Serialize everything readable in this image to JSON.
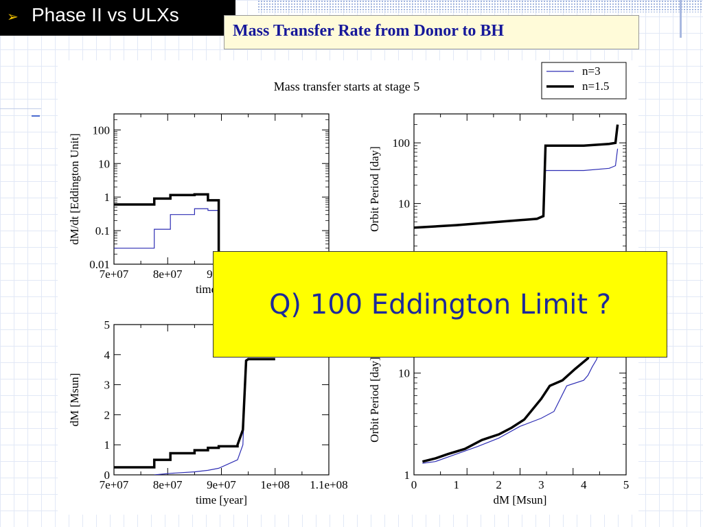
{
  "slide": {
    "title": "Phase II vs ULXs",
    "title_bullet": "➢",
    "subtitle": "Mass Transfer Rate from Donor to BH",
    "callout": "Q) 100 Eddington Limit  ?",
    "callout_color": "#ffff00",
    "callout_text_color": "#1d2a9a",
    "subtitle_color": "#16189a"
  },
  "chart_data": {
    "title": "Mass transfer starts at stage 5",
    "legend": {
      "placement": "top-right",
      "entries": [
        {
          "name": "n=3",
          "color": "#2d2db4",
          "width": "thin"
        },
        {
          "name": "n=1.5",
          "color": "#000000",
          "width": "thick"
        }
      ]
    },
    "panels": [
      {
        "id": "tl",
        "type": "line",
        "xlabel": "time [year]",
        "ylabel": "dM/dt [Eddington Unit]",
        "xscale": "linear",
        "yscale": "log",
        "xlim": [
          70000000,
          110000000
        ],
        "ylim": [
          0.01,
          300
        ],
        "xticks": [
          {
            "v": 70000000,
            "label": "7e+07"
          },
          {
            "v": 80000000,
            "label": "8e+07"
          },
          {
            "v": 90000000,
            "label": "9e+07"
          }
        ],
        "yticks": [
          {
            "v": 0.01,
            "label": "0.01"
          },
          {
            "v": 0.1,
            "label": "0.1"
          },
          {
            "v": 1,
            "label": "1"
          },
          {
            "v": 10,
            "label": "10"
          },
          {
            "v": 100,
            "label": "100"
          }
        ],
        "series": [
          {
            "name": "n=3",
            "x": [
              70000000,
              70000000,
              77500000,
              77500000,
              80500000,
              80500000,
              85000000,
              85000000,
              87500000,
              87500000,
              89500000,
              89500000
            ],
            "y": [
              0.03,
              0.03,
              0.03,
              0.11,
              0.11,
              0.3,
              0.3,
              0.45,
              0.45,
              0.4,
              0.4,
              0.01
            ]
          },
          {
            "name": "n=1.5",
            "x": [
              70000000,
              70000000,
              77500000,
              77500000,
              80500000,
              80500000,
              85000000,
              85000000,
              87500000,
              87500000,
              89500000,
              89500000
            ],
            "y": [
              0.6,
              0.6,
              0.6,
              0.9,
              0.9,
              1.15,
              1.15,
              1.2,
              1.2,
              0.8,
              0.8,
              0.01
            ]
          }
        ]
      },
      {
        "id": "tr",
        "type": "line",
        "xlabel": "",
        "ylabel": "Orbit Period [day]",
        "xscale": "linear",
        "yscale": "log",
        "xlim": [
          0,
          5
        ],
        "ylim": [
          1,
          300
        ],
        "xticks": [],
        "yticks": [
          {
            "v": 10,
            "label": "10"
          },
          {
            "v": 100,
            "label": "100"
          }
        ],
        "series": [
          {
            "name": "n=3",
            "x": [
              0,
              1,
              2,
              2.9,
              3.05,
              3.1,
              3.2,
              4.0,
              4.6,
              4.75,
              4.8
            ],
            "y": [
              4.0,
              4.4,
              5.0,
              5.6,
              6.0,
              35,
              35,
              35,
              38,
              42,
              80
            ]
          },
          {
            "name": "n=1.5",
            "x": [
              0,
              1,
              2,
              2.9,
              3.05,
              3.1,
              3.2,
              4.0,
              4.6,
              4.75,
              4.8
            ],
            "y": [
              4.0,
              4.4,
              5.0,
              5.6,
              6.2,
              90,
              90,
              90,
              96,
              100,
              200
            ]
          }
        ]
      },
      {
        "id": "bl",
        "type": "line",
        "xlabel": "time [year]",
        "ylabel": "dM [Msun]",
        "xscale": "linear",
        "yscale": "linear",
        "xlim": [
          70000000,
          110000000
        ],
        "ylim": [
          0,
          5
        ],
        "xticks": [
          {
            "v": 70000000,
            "label": "7e+07"
          },
          {
            "v": 80000000,
            "label": "8e+07"
          },
          {
            "v": 90000000,
            "label": "9e+07"
          },
          {
            "v": 100000000,
            "label": "1e+08"
          },
          {
            "v": 110000000,
            "label": "1.1e+08"
          }
        ],
        "yticks": [
          {
            "v": 0,
            "label": "0"
          },
          {
            "v": 1,
            "label": "1"
          },
          {
            "v": 2,
            "label": "2"
          },
          {
            "v": 3,
            "label": "3"
          },
          {
            "v": 4,
            "label": "4"
          },
          {
            "v": 5,
            "label": "5"
          }
        ],
        "series": [
          {
            "name": "n=3",
            "x": [
              77500000,
              80500000,
              85000000,
              87500000,
              89500000,
              93000000,
              94000000,
              94600000,
              95000000,
              100000000
            ],
            "y": [
              0,
              0.05,
              0.1,
              0.15,
              0.22,
              0.5,
              1.0,
              3.8,
              3.85,
              3.85
            ]
          },
          {
            "name": "n=1.5",
            "x": [
              70000000,
              77500000,
              77500000,
              80500000,
              80500000,
              85000000,
              85000000,
              87500000,
              87500000,
              89500000,
              89500000,
              93000000,
              93000000,
              94000000,
              94600000,
              95000000,
              100000000
            ],
            "y": [
              0.25,
              0.25,
              0.5,
              0.5,
              0.72,
              0.72,
              0.82,
              0.82,
              0.9,
              0.9,
              0.95,
              0.95,
              1.0,
              1.5,
              3.8,
              3.85,
              3.85
            ]
          }
        ]
      },
      {
        "id": "br",
        "type": "line",
        "xlabel": "dM [Msun]",
        "ylabel": "Orbit Period [day]",
        "xscale": "linear",
        "yscale": "log",
        "xlim": [
          0,
          5
        ],
        "ylim": [
          1,
          30
        ],
        "xticks": [
          {
            "v": 0,
            "label": "0"
          },
          {
            "v": 1,
            "label": "1"
          },
          {
            "v": 2,
            "label": "2"
          },
          {
            "v": 3,
            "label": "3"
          },
          {
            "v": 4,
            "label": "4"
          },
          {
            "v": 5,
            "label": "5"
          }
        ],
        "yticks": [
          {
            "v": 1,
            "label": "1"
          },
          {
            "v": 10,
            "label": "10"
          }
        ],
        "series": [
          {
            "name": "n=3",
            "x": [
              0.2,
              0.5,
              1.0,
              1.5,
              2.0,
              2.5,
              3.0,
              3.3,
              3.6,
              4.0,
              4.1,
              4.2,
              4.3,
              4.35,
              4.4,
              4.5,
              4.6,
              4.75
            ],
            "y": [
              1.3,
              1.35,
              1.6,
              1.9,
              2.3,
              3.0,
              3.6,
              4.2,
              7.5,
              8.5,
              9.5,
              11.5,
              13.5,
              15.5,
              17.5,
              20,
              25,
              30
            ]
          },
          {
            "name": "n=1.5",
            "x": [
              0.2,
              0.5,
              0.8,
              1.2,
              1.6,
              2.0,
              2.3,
              2.6,
              3.0,
              3.2,
              3.5,
              3.8,
              4.1,
              4.15
            ],
            "y": [
              1.35,
              1.45,
              1.6,
              1.8,
              2.2,
              2.5,
              2.9,
              3.5,
              5.6,
              7.5,
              8.5,
              11,
              14,
              30
            ]
          }
        ]
      }
    ]
  }
}
